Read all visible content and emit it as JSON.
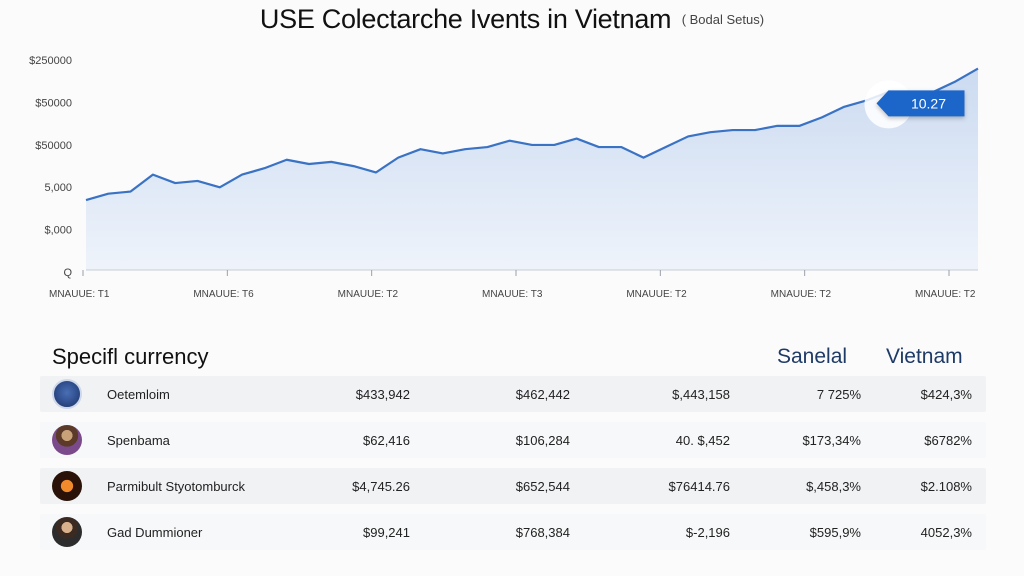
{
  "chart_data": {
    "type": "area",
    "title": "USE Colectarche Ivents in Vietnam",
    "subtitle": "( Bodal Setus)",
    "y_tick_labels": [
      "$250000",
      "$50000",
      "$50000",
      "5,000",
      "$,000",
      "Q"
    ],
    "x_tick_labels": [
      "MNAUUE: T1",
      "MNAUUE: T6",
      "MNAUUE: T2",
      "MNAUUE: T3",
      "MNAUUE: T2",
      "MNAUUE: T2",
      "MNAUUE: T2"
    ],
    "ylim": [
      0,
      100
    ],
    "x": [
      0,
      1,
      2,
      3,
      4,
      5,
      6,
      7,
      8,
      9,
      10,
      11,
      12,
      13,
      14,
      15,
      16,
      17,
      18,
      19,
      20,
      21,
      22,
      23,
      24,
      25,
      26,
      27,
      28,
      29,
      30,
      31,
      32,
      33,
      34,
      35,
      36,
      37,
      38,
      39,
      40
    ],
    "series": [
      {
        "values": [
          33,
          36,
          37,
          45,
          41,
          42,
          39,
          45,
          48,
          52,
          50,
          51,
          49,
          46,
          53,
          57,
          55,
          57,
          58,
          61,
          59,
          59,
          62,
          58,
          58,
          53,
          58,
          63,
          65,
          66,
          66,
          68,
          68,
          72,
          77,
          80,
          84,
          83,
          84,
          89,
          95
        ],
        "color": "#3a72c4"
      }
    ],
    "annotation": {
      "x": 35,
      "label": "10.27"
    },
    "grid": false
  },
  "table": {
    "title": "Specifl currency",
    "col_heads": [
      "Sanelal",
      "Vietnam"
    ],
    "rows": [
      {
        "name": "Oetemloim",
        "icon": "globe-icon",
        "v1": "$433,942",
        "v2": "$462,442",
        "v3": "$,443,158",
        "v4": "7 725%",
        "v5": "$424,3%"
      },
      {
        "name": "Spenbama",
        "icon": "person-avatar",
        "v1": "$62,416",
        "v2": "$106,284",
        "v3": "40. $,452",
        "v4": "$173,34%",
        "v5": "$6782%"
      },
      {
        "name": "Parmibult Styotomburck",
        "icon": "logo-icon",
        "v1": "$4,745.26",
        "v2": "$652,544",
        "v3": "$76414.76",
        "v4": "$,458,3%",
        "v5": "$2.108%"
      },
      {
        "name": "Gad Dummioner",
        "icon": "person-avatar",
        "v1": "$99,241",
        "v2": "$768,384",
        "v3": "$-2,196",
        "v4": "$595,9%",
        "v5": "4052,3%"
      }
    ]
  },
  "colors": {
    "line": "#3a72c4",
    "area_top": "#c9d9f0",
    "area_bottom": "#eef3fb",
    "callout": "#1d66c9",
    "header_text": "#1e3a66"
  }
}
